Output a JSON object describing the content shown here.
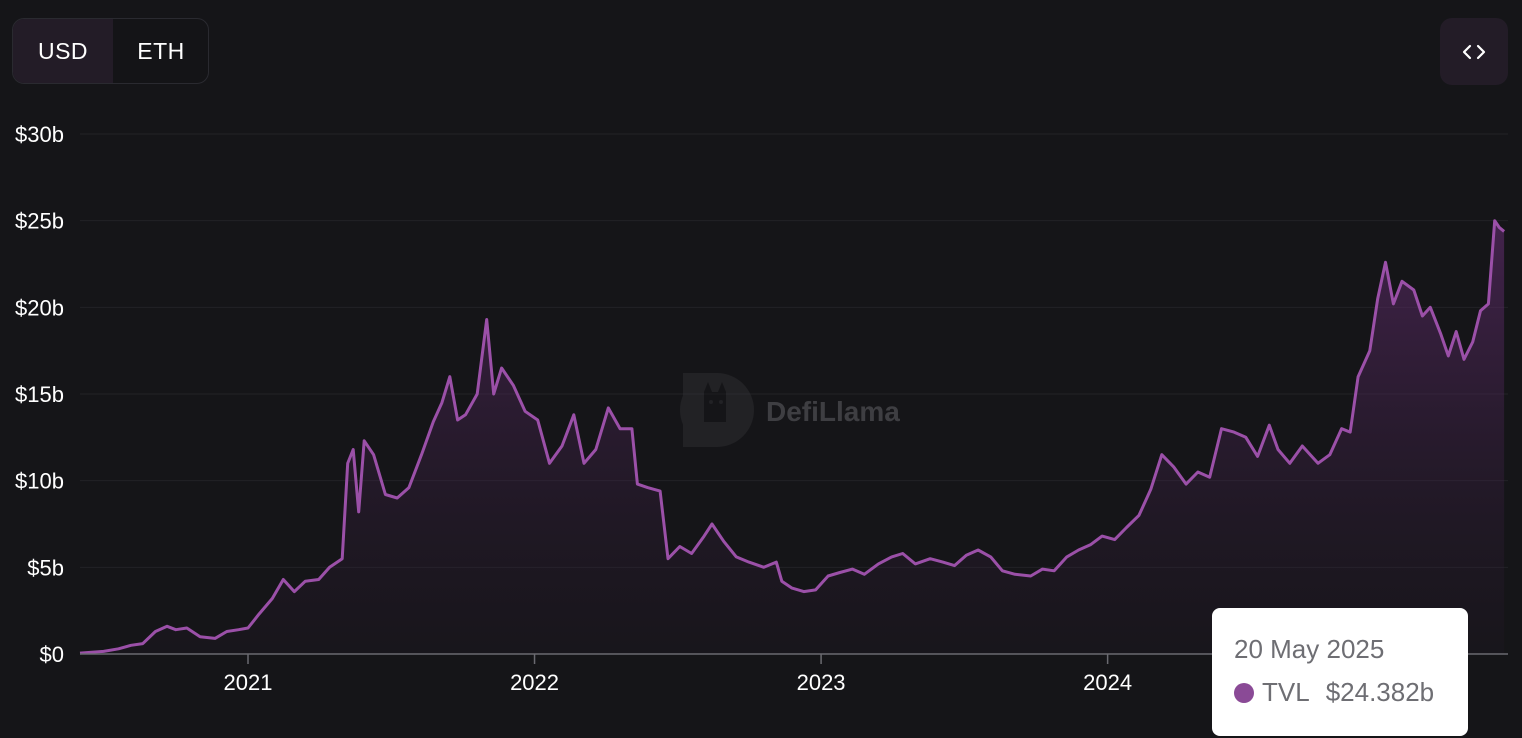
{
  "currency_toggle": {
    "options": [
      "USD",
      "ETH"
    ],
    "selected": "USD"
  },
  "embed_button": {
    "icon": "code-brackets-icon",
    "label": "<>"
  },
  "watermark": {
    "text": "DefiLlama",
    "icon": "llama-logo-icon"
  },
  "tooltip": {
    "date": "20 May 2025",
    "series_name": "TVL",
    "value": "$24.382b",
    "dot_color": "#8a4a96"
  },
  "colors": {
    "line": "#9b50a8",
    "background": "#151518",
    "accent_dark": "#231c27"
  },
  "chart_data": {
    "type": "area",
    "title": "",
    "xlabel": "",
    "ylabel": "",
    "x_tick_labels": [
      "2021",
      "2022",
      "2023",
      "2024"
    ],
    "y_tick_labels": [
      "$0",
      "$5b",
      "$10b",
      "$15b",
      "$20b",
      "$25b",
      "$30b"
    ],
    "ylim": [
      0,
      30
    ],
    "xlim": [
      "2020-06-01",
      "2025-05-25"
    ],
    "grid": true,
    "legend": "none",
    "series": [
      {
        "name": "TVL",
        "unit": "$b",
        "points": [
          [
            "2020-06-01",
            0.05
          ],
          [
            "2020-07-01",
            0.15
          ],
          [
            "2020-07-20",
            0.3
          ],
          [
            "2020-08-05",
            0.5
          ],
          [
            "2020-08-20",
            0.6
          ],
          [
            "2020-09-05",
            1.3
          ],
          [
            "2020-09-20",
            1.6
          ],
          [
            "2020-10-01",
            1.4
          ],
          [
            "2020-10-15",
            1.5
          ],
          [
            "2020-11-01",
            1.0
          ],
          [
            "2020-11-20",
            0.9
          ],
          [
            "2020-12-05",
            1.3
          ],
          [
            "2020-12-20",
            1.4
          ],
          [
            "2021-01-01",
            1.5
          ],
          [
            "2021-01-15",
            2.3
          ],
          [
            "2021-02-01",
            3.2
          ],
          [
            "2021-02-15",
            4.3
          ],
          [
            "2021-03-01",
            3.6
          ],
          [
            "2021-03-15",
            4.2
          ],
          [
            "2021-04-01",
            4.3
          ],
          [
            "2021-04-15",
            5.0
          ],
          [
            "2021-05-01",
            5.5
          ],
          [
            "2021-05-08",
            11.0
          ],
          [
            "2021-05-15",
            11.8
          ],
          [
            "2021-05-22",
            8.2
          ],
          [
            "2021-05-29",
            12.3
          ],
          [
            "2021-06-10",
            11.5
          ],
          [
            "2021-06-25",
            9.2
          ],
          [
            "2021-07-10",
            9.0
          ],
          [
            "2021-07-25",
            9.6
          ],
          [
            "2021-08-10",
            11.5
          ],
          [
            "2021-08-25",
            13.4
          ],
          [
            "2021-09-05",
            14.5
          ],
          [
            "2021-09-15",
            16.0
          ],
          [
            "2021-09-25",
            13.5
          ],
          [
            "2021-10-05",
            13.8
          ],
          [
            "2021-10-20",
            15.0
          ],
          [
            "2021-11-01",
            19.3
          ],
          [
            "2021-11-10",
            15.0
          ],
          [
            "2021-11-20",
            16.5
          ],
          [
            "2021-12-05",
            15.5
          ],
          [
            "2021-12-20",
            14.0
          ],
          [
            "2022-01-05",
            13.5
          ],
          [
            "2022-01-20",
            11.0
          ],
          [
            "2022-02-05",
            12.0
          ],
          [
            "2022-02-20",
            13.8
          ],
          [
            "2022-03-05",
            11.0
          ],
          [
            "2022-03-20",
            11.8
          ],
          [
            "2022-04-05",
            14.2
          ],
          [
            "2022-04-20",
            13.0
          ],
          [
            "2022-05-05",
            13.0
          ],
          [
            "2022-05-12",
            9.8
          ],
          [
            "2022-05-25",
            9.6
          ],
          [
            "2022-06-10",
            9.4
          ],
          [
            "2022-06-20",
            5.5
          ],
          [
            "2022-07-05",
            6.2
          ],
          [
            "2022-07-20",
            5.8
          ],
          [
            "2022-08-05",
            6.8
          ],
          [
            "2022-08-15",
            7.5
          ],
          [
            "2022-08-30",
            6.5
          ],
          [
            "2022-09-15",
            5.6
          ],
          [
            "2022-10-01",
            5.3
          ],
          [
            "2022-10-20",
            5.0
          ],
          [
            "2022-11-05",
            5.3
          ],
          [
            "2022-11-12",
            4.2
          ],
          [
            "2022-11-25",
            3.8
          ],
          [
            "2022-12-10",
            3.6
          ],
          [
            "2022-12-25",
            3.7
          ],
          [
            "2023-01-10",
            4.5
          ],
          [
            "2023-01-25",
            4.7
          ],
          [
            "2023-02-10",
            4.9
          ],
          [
            "2023-02-25",
            4.6
          ],
          [
            "2023-03-15",
            5.2
          ],
          [
            "2023-04-01",
            5.6
          ],
          [
            "2023-04-15",
            5.8
          ],
          [
            "2023-05-01",
            5.2
          ],
          [
            "2023-05-20",
            5.5
          ],
          [
            "2023-06-05",
            5.3
          ],
          [
            "2023-06-20",
            5.1
          ],
          [
            "2023-07-05",
            5.7
          ],
          [
            "2023-07-20",
            6.0
          ],
          [
            "2023-08-05",
            5.6
          ],
          [
            "2023-08-20",
            4.8
          ],
          [
            "2023-09-05",
            4.6
          ],
          [
            "2023-09-25",
            4.5
          ],
          [
            "2023-10-10",
            4.9
          ],
          [
            "2023-10-25",
            4.8
          ],
          [
            "2023-11-10",
            5.6
          ],
          [
            "2023-11-25",
            6.0
          ],
          [
            "2023-12-10",
            6.3
          ],
          [
            "2023-12-25",
            6.8
          ],
          [
            "2024-01-10",
            6.6
          ],
          [
            "2024-01-25",
            7.3
          ],
          [
            "2024-02-10",
            8.0
          ],
          [
            "2024-02-25",
            9.5
          ],
          [
            "2024-03-10",
            11.5
          ],
          [
            "2024-03-25",
            10.8
          ],
          [
            "2024-04-10",
            9.8
          ],
          [
            "2024-04-25",
            10.5
          ],
          [
            "2024-05-10",
            10.2
          ],
          [
            "2024-05-25",
            13.0
          ],
          [
            "2024-06-10",
            12.8
          ],
          [
            "2024-06-25",
            12.5
          ],
          [
            "2024-07-10",
            11.4
          ],
          [
            "2024-07-25",
            13.2
          ],
          [
            "2024-08-05",
            11.8
          ],
          [
            "2024-08-20",
            11.0
          ],
          [
            "2024-09-05",
            12.0
          ],
          [
            "2024-09-25",
            11.0
          ],
          [
            "2024-10-10",
            11.5
          ],
          [
            "2024-10-25",
            13.0
          ],
          [
            "2024-11-05",
            12.8
          ],
          [
            "2024-11-15",
            16.0
          ],
          [
            "2024-11-30",
            17.5
          ],
          [
            "2024-12-10",
            20.5
          ],
          [
            "2024-12-20",
            22.6
          ],
          [
            "2024-12-30",
            20.2
          ],
          [
            "2025-01-10",
            21.5
          ],
          [
            "2025-01-25",
            21.0
          ],
          [
            "2025-02-05",
            19.5
          ],
          [
            "2025-02-15",
            20.0
          ],
          [
            "2025-02-28",
            18.5
          ],
          [
            "2025-03-10",
            17.2
          ],
          [
            "2025-03-20",
            18.6
          ],
          [
            "2025-03-30",
            17.0
          ],
          [
            "2025-04-10",
            18.0
          ],
          [
            "2025-04-20",
            19.8
          ],
          [
            "2025-04-30",
            20.2
          ],
          [
            "2025-05-08",
            25.0
          ],
          [
            "2025-05-14",
            24.6
          ],
          [
            "2025-05-20",
            24.382
          ]
        ]
      }
    ]
  }
}
